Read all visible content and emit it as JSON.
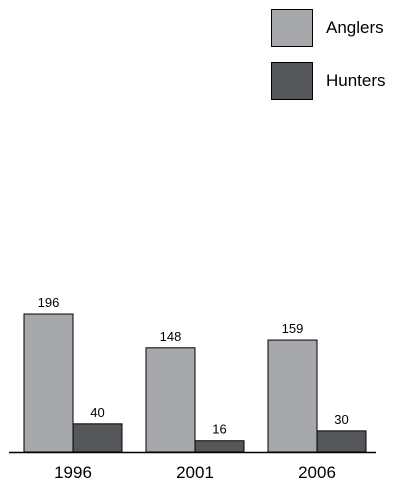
{
  "chart_data": {
    "type": "bar",
    "categories": [
      "1996",
      "2001",
      "2006"
    ],
    "series": [
      {
        "name": "Anglers",
        "values": [
          196,
          148,
          159
        ],
        "color": "#a7a8ac"
      },
      {
        "name": "Hunters",
        "values": [
          40,
          16,
          30
        ],
        "color": "#555659"
      }
    ],
    "title": "",
    "xlabel": "",
    "ylabel": "",
    "ylim": [
      0,
      196
    ],
    "grid": false,
    "legend_position": "top-right",
    "show_data_labels": true
  }
}
